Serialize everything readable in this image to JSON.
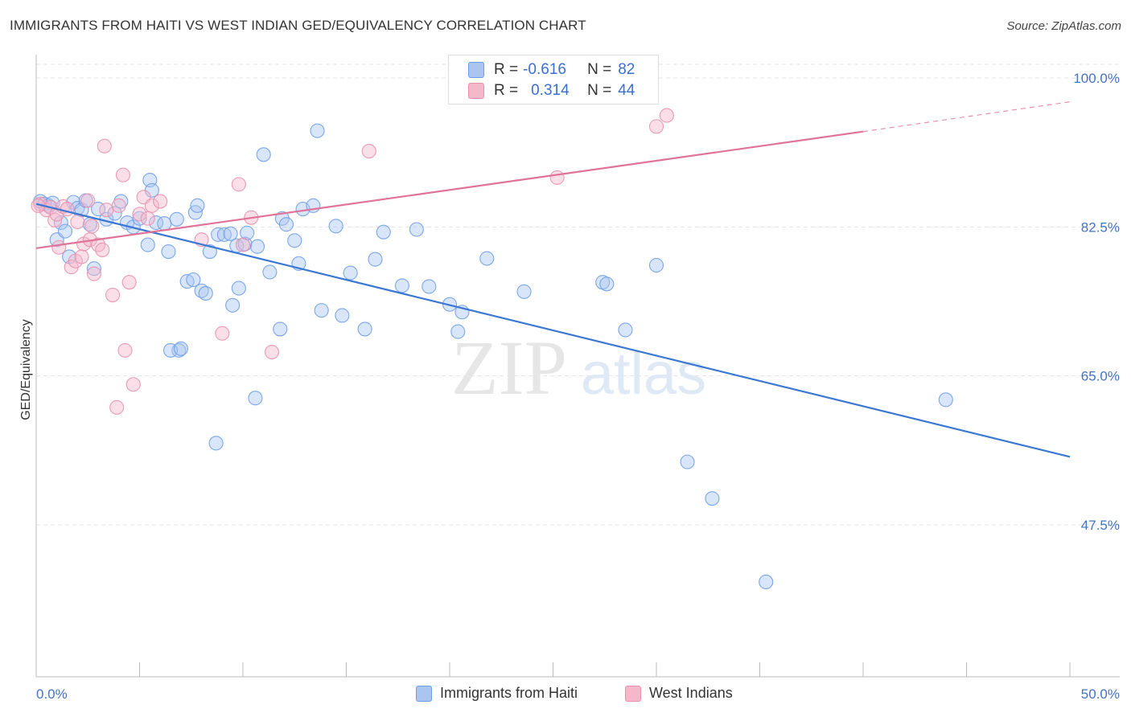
{
  "title": "IMMIGRANTS FROM HAITI VS WEST INDIAN GED/EQUIVALENCY CORRELATION CHART",
  "source": "Source: ZipAtlas.com",
  "watermark": {
    "zip": "ZIP",
    "atlas": "atlas"
  },
  "stats": [
    {
      "r_label": "R =",
      "r_value": "-0.616",
      "n_label": "N =",
      "n_value": "82",
      "color": "#aac6f0"
    },
    {
      "r_label": "R =",
      "r_value": "0.314",
      "n_label": "N =",
      "n_value": "44",
      "color": "#f5b8cb"
    }
  ],
  "chart_data": {
    "type": "scatter",
    "title": "IMMIGRANTS FROM HAITI VS WEST INDIAN GED/EQUIVALENCY CORRELATION CHART",
    "xlabel": "",
    "ylabel": "GED/Equivalency",
    "xlim": [
      0,
      50
    ],
    "ylim": [
      31,
      100
    ],
    "x_tick_labels": [
      "0.0%",
      "50.0%"
    ],
    "y_ticks": [
      47.5,
      65.0,
      82.5,
      100.0
    ],
    "y_tick_labels": [
      "47.5%",
      "65.0%",
      "82.5%",
      "100.0%"
    ],
    "grid": true,
    "legend_position": "bottom",
    "series": [
      {
        "name": "Immigrants from Haiti",
        "color": "#6f9ee8",
        "fill": "#aac6f0",
        "trend": {
          "x": [
            0,
            50
          ],
          "y": [
            85.2,
            55.5
          ]
        },
        "points": [
          [
            0.2,
            85.5
          ],
          [
            0.4,
            85.2
          ],
          [
            0.6,
            85.0
          ],
          [
            0.8,
            85.3
          ],
          [
            1.0,
            81.0
          ],
          [
            1.2,
            83.0
          ],
          [
            1.4,
            82.0
          ],
          [
            1.6,
            79.0
          ],
          [
            1.8,
            85.4
          ],
          [
            2.0,
            84.7
          ],
          [
            2.2,
            84.5
          ],
          [
            2.4,
            85.6
          ],
          [
            2.6,
            82.8
          ],
          [
            2.8,
            77.6
          ],
          [
            3.0,
            84.6
          ],
          [
            3.4,
            83.4
          ],
          [
            3.8,
            84.1
          ],
          [
            4.1,
            85.5
          ],
          [
            4.4,
            83.0
          ],
          [
            4.7,
            82.5
          ],
          [
            5.0,
            83.5
          ],
          [
            5.4,
            80.4
          ],
          [
            5.5,
            88.0
          ],
          [
            5.6,
            86.8
          ],
          [
            5.8,
            83.0
          ],
          [
            6.2,
            82.9
          ],
          [
            6.4,
            79.6
          ],
          [
            6.9,
            68.0
          ],
          [
            6.5,
            68.0
          ],
          [
            6.8,
            83.4
          ],
          [
            7.0,
            68.2
          ],
          [
            7.3,
            76.1
          ],
          [
            7.6,
            76.3
          ],
          [
            7.7,
            84.2
          ],
          [
            7.8,
            85.0
          ],
          [
            8.0,
            75.0
          ],
          [
            8.2,
            74.7
          ],
          [
            8.4,
            79.6
          ],
          [
            8.7,
            57.1
          ],
          [
            8.8,
            81.6
          ],
          [
            9.1,
            81.6
          ],
          [
            9.4,
            81.7
          ],
          [
            9.5,
            73.3
          ],
          [
            9.7,
            80.3
          ],
          [
            9.8,
            75.3
          ],
          [
            10.1,
            80.5
          ],
          [
            10.2,
            81.8
          ],
          [
            10.6,
            62.4
          ],
          [
            10.7,
            80.2
          ],
          [
            11.0,
            91.0
          ],
          [
            11.3,
            77.2
          ],
          [
            11.8,
            70.5
          ],
          [
            11.9,
            83.5
          ],
          [
            12.1,
            82.8
          ],
          [
            12.5,
            80.9
          ],
          [
            12.7,
            78.2
          ],
          [
            12.9,
            84.6
          ],
          [
            13.4,
            85.0
          ],
          [
            13.6,
            93.8
          ],
          [
            13.8,
            72.7
          ],
          [
            14.5,
            82.6
          ],
          [
            14.8,
            72.1
          ],
          [
            15.2,
            77.1
          ],
          [
            15.9,
            70.5
          ],
          [
            16.4,
            78.7
          ],
          [
            16.8,
            81.9
          ],
          [
            17.7,
            75.6
          ],
          [
            18.4,
            82.2
          ],
          [
            19.0,
            75.5
          ],
          [
            20.0,
            73.4
          ],
          [
            20.4,
            70.2
          ],
          [
            20.6,
            72.5
          ],
          [
            21.8,
            78.8
          ],
          [
            23.6,
            74.9
          ],
          [
            27.4,
            76.0
          ],
          [
            27.6,
            75.8
          ],
          [
            28.5,
            70.4
          ],
          [
            30.0,
            78.0
          ],
          [
            31.5,
            54.9
          ],
          [
            32.7,
            50.6
          ],
          [
            35.3,
            40.8
          ],
          [
            44.0,
            62.2
          ]
        ]
      },
      {
        "name": "West Indians",
        "color": "#e890ae",
        "fill": "#f5b8cb",
        "trend": {
          "x": [
            0,
            40
          ],
          "y": [
            80.0,
            93.7
          ]
        },
        "trend_dashed": {
          "x": [
            40,
            50
          ],
          "y": [
            93.7,
            97.2
          ]
        },
        "points": [
          [
            0.2,
            85.2
          ],
          [
            0.5,
            84.5
          ],
          [
            0.7,
            84.8
          ],
          [
            0.9,
            83.3
          ],
          [
            1.0,
            84.0
          ],
          [
            1.1,
            80.1
          ],
          [
            1.3,
            84.9
          ],
          [
            1.5,
            84.6
          ],
          [
            1.7,
            77.8
          ],
          [
            1.9,
            78.5
          ],
          [
            2.0,
            83.1
          ],
          [
            2.2,
            79.0
          ],
          [
            2.3,
            80.5
          ],
          [
            2.5,
            85.6
          ],
          [
            2.6,
            81.0
          ],
          [
            2.7,
            82.6
          ],
          [
            2.8,
            77.0
          ],
          [
            3.0,
            80.4
          ],
          [
            3.2,
            79.8
          ],
          [
            3.3,
            92.0
          ],
          [
            3.4,
            84.5
          ],
          [
            3.7,
            74.5
          ],
          [
            4.0,
            85.0
          ],
          [
            4.2,
            88.6
          ],
          [
            4.3,
            68.0
          ],
          [
            4.5,
            76.0
          ],
          [
            4.7,
            64.0
          ],
          [
            3.9,
            61.3
          ],
          [
            5.0,
            84.0
          ],
          [
            5.2,
            86.0
          ],
          [
            5.4,
            83.5
          ],
          [
            5.6,
            85.0
          ],
          [
            6.0,
            85.5
          ],
          [
            8.0,
            81.0
          ],
          [
            9.0,
            70.0
          ],
          [
            9.8,
            87.5
          ],
          [
            10.0,
            80.4
          ],
          [
            10.4,
            83.6
          ],
          [
            11.4,
            67.8
          ],
          [
            16.1,
            91.4
          ],
          [
            25.2,
            88.3
          ],
          [
            30.0,
            94.3
          ],
          [
            30.5,
            95.6
          ],
          [
            0.1,
            85.0
          ]
        ]
      }
    ]
  },
  "legend": [
    {
      "label": "Immigrants from Haiti",
      "color": "#aac6f0",
      "border": "#6f9ee8"
    },
    {
      "label": "West Indians",
      "color": "#f5b8cb",
      "border": "#e890ae"
    }
  ]
}
